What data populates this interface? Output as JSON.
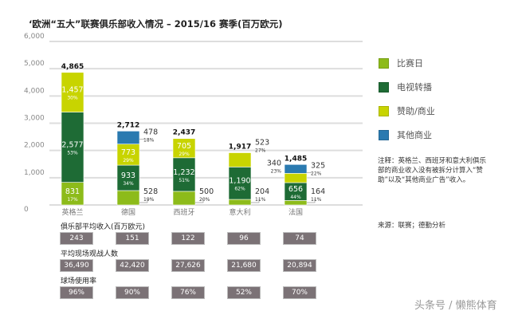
{
  "chart_data": {
    "type": "bar",
    "stacked": true,
    "title": "‘欧洲“五大”联赛俱乐部收入情况 – 2015/16 赛季(百万欧元)",
    "categories": [
      "英格兰",
      "德国",
      "西班牙",
      "意大利",
      "法国"
    ],
    "ylim": [
      0,
      6000
    ],
    "yticks": [
      "0",
      "1,000",
      "2,000",
      "3,000",
      "4,000",
      "5,000",
      "6,000"
    ],
    "grid": true,
    "legend_position": "right",
    "totals": [
      "4,865",
      "2,712",
      "2,437",
      "1,917",
      "1,485"
    ],
    "series": [
      {
        "name": "比赛日",
        "color": "#8dbb1a",
        "values": [
          831,
          528,
          500,
          204,
          164
        ],
        "labels": [
          "831",
          "528",
          "500",
          "204",
          "164"
        ],
        "pct": [
          "17%",
          "19%",
          "20%",
          "11%",
          "11%"
        ]
      },
      {
        "name": "电视转播",
        "color": "#1e6b35",
        "values": [
          2577,
          933,
          1232,
          1190,
          656
        ],
        "labels": [
          "2,577",
          "933",
          "1,232",
          "1,190",
          "656"
        ],
        "pct": [
          "53%",
          "34%",
          "51%",
          "62%",
          "44%"
        ]
      },
      {
        "name": "赞助/商业",
        "color": "#c8d400",
        "values": [
          1457,
          773,
          705,
          523,
          340
        ],
        "labels": [
          "1,457",
          "773",
          "705",
          "523",
          "340"
        ],
        "pct": [
          "30%",
          "29%",
          "29%",
          "27%",
          "23%"
        ]
      },
      {
        "name": "其他商业",
        "color": "#2a7ab0",
        "values": [
          0,
          478,
          0,
          0,
          325
        ],
        "labels": [
          "",
          "478",
          "",
          "",
          "325"
        ],
        "pct": [
          "",
          "18%",
          "",
          "",
          "22%"
        ]
      }
    ]
  },
  "note": "注释：英格兰、西班牙和意大利俱乐部的商业收入没有被拆分计算入“赞助”以及“其他商业广告”收入。",
  "source": "来源：联赛；德勤分析",
  "table": [
    {
      "label": "俱乐部平均收入(百万欧元)",
      "values": [
        "243",
        "151",
        "122",
        "96",
        "74"
      ]
    },
    {
      "label": "平均现场观战人数",
      "values": [
        "36,490",
        "42,420",
        "27,626",
        "21,680",
        "20,894"
      ]
    },
    {
      "label": "球场使用率",
      "values": [
        "96%",
        "90%",
        "76%",
        "52%",
        "70%"
      ]
    }
  ],
  "watermark": "头条号 / 懒熊体育"
}
